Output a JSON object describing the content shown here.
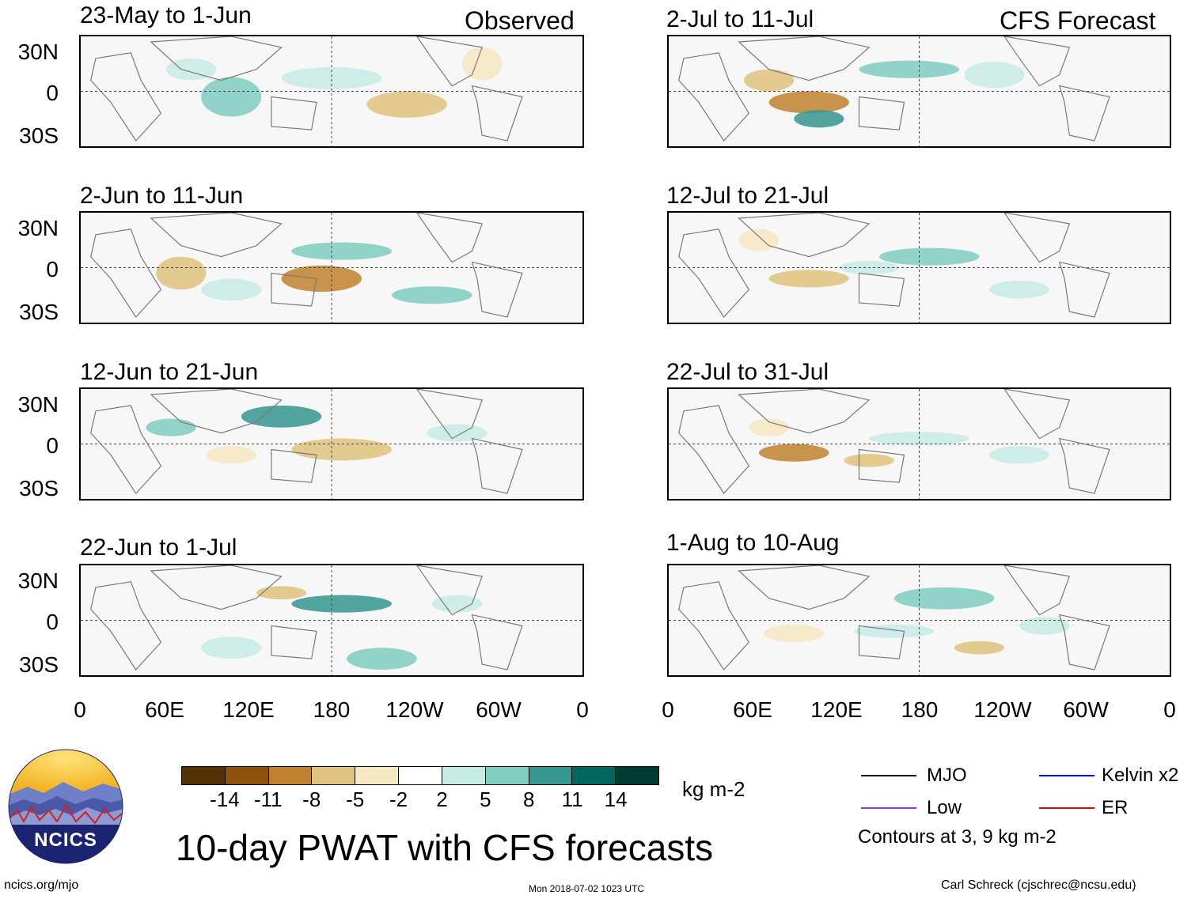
{
  "header": {
    "observed_label": "Observed",
    "forecast_label": "CFS Forecast"
  },
  "panels_left": [
    {
      "title": "23-May to 1-Jun"
    },
    {
      "title": "2-Jun to 11-Jun"
    },
    {
      "title": "12-Jun to 21-Jun"
    },
    {
      "title": "22-Jun to 1-Jul"
    }
  ],
  "panels_right": [
    {
      "title": "2-Jul to 11-Jul"
    },
    {
      "title": "12-Jul to 21-Jul"
    },
    {
      "title": "22-Jul to 31-Jul"
    },
    {
      "title": "1-Aug to 10-Aug"
    }
  ],
  "y_ticks": [
    "30N",
    "0",
    "30S"
  ],
  "x_ticks": [
    "0",
    "60E",
    "120E",
    "180",
    "120W",
    "60W",
    "0"
  ],
  "colorbar": {
    "labels": [
      "-14",
      "-11",
      "-8",
      "-5",
      "-2",
      "2",
      "5",
      "8",
      "11",
      "14"
    ],
    "units": "kg m-2",
    "colors": [
      "#543005",
      "#8c510a",
      "#bf812d",
      "#dfc27d",
      "#f6e8c3",
      "#ffffff",
      "#c7eae5",
      "#80cdc1",
      "#35978f",
      "#01665e",
      "#003c30"
    ]
  },
  "legend": {
    "items": [
      {
        "label": "MJO",
        "color": "#000000"
      },
      {
        "label": "Kelvin x2",
        "color": "#0000cc"
      },
      {
        "label": "Low",
        "color": "#9933ff"
      },
      {
        "label": "ER",
        "color": "#e60000"
      }
    ],
    "note": "Contours at 3, 9 kg m-2"
  },
  "title": "10-day PWAT with CFS forecasts",
  "logo": {
    "text": "NCICS"
  },
  "footer": {
    "url": "ncics.org/mjo",
    "timestamp": "Mon 2018-07-02 1023 UTC",
    "author": "Carl Schreck (cjschrec@ncsu.edu)"
  }
}
